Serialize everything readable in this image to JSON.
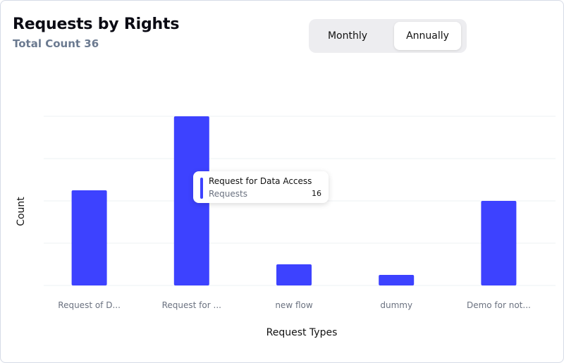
{
  "header": {
    "title": "Requests by Rights",
    "subtitle": "Total Count 36"
  },
  "toggle": {
    "options": [
      "Monthly",
      "Annually"
    ],
    "selected": "Annually"
  },
  "tooltip": {
    "title": "Request for Data Access",
    "series": "Requests",
    "value": "16"
  },
  "colors": {
    "bar": "#3d42ff",
    "grid": "#eef0f3"
  },
  "chart_data": {
    "type": "bar",
    "categories": [
      "Request of D...",
      "Request for ...",
      "new flow",
      "dummy",
      "Demo for not..."
    ],
    "series": [
      {
        "name": "Requests",
        "values": [
          9,
          16,
          2,
          1,
          8
        ]
      }
    ],
    "xlabel": "Request Types",
    "ylabel": "Count",
    "ylim": [
      0,
      16
    ],
    "grid": true
  }
}
